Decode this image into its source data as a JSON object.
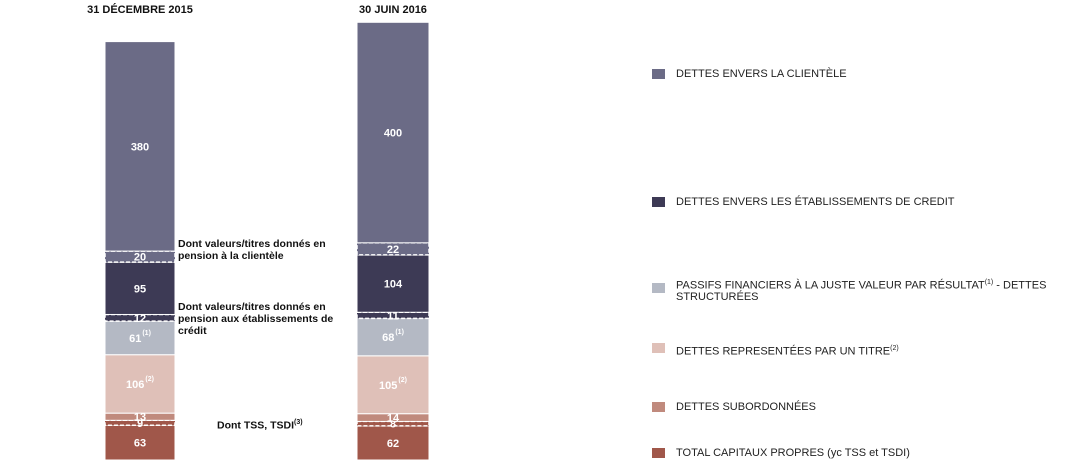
{
  "chart_data": {
    "type": "stacked_bar",
    "categories": [
      "31 DÉCEMBRE  2015",
      "30 JUIN 2016"
    ],
    "ylim": [
      0,
      800
    ],
    "series": [
      {
        "name": "TOTAL CAPITAUX PROPRES (yc TSS et TSDI)",
        "color": "#a0574a",
        "values": [
          63,
          62
        ]
      },
      {
        "color": "#a0574a",
        "dashed": true,
        "values": [
          9,
          8
        ],
        "annotation": "Dont TSS, TSDI(3)"
      },
      {
        "name": "DETTES SUBORDONNÉES",
        "color": "#c08a7d",
        "values": [
          13,
          14
        ]
      },
      {
        "name": "DETTES REPRESENTÉES PAR UN TITRE(2)",
        "color": "#dfc0b8",
        "values": [
          106,
          105
        ],
        "value_notes": [
          "(2)",
          "(2)"
        ]
      },
      {
        "name": "PASSIFS FINANCIERS À LA JUSTE VALEUR PAR RÉSULTAT(1) - DETTES STRUCTURÉES",
        "color": "#b4b9c4",
        "values": [
          61,
          68
        ],
        "value_notes": [
          "(1)",
          "(1)"
        ]
      },
      {
        "color": "#3d3a55",
        "dashed": true,
        "values": [
          12,
          11
        ],
        "annotation": "Dont valeurs/titres donnés en pension aux établissements de crédit"
      },
      {
        "name": "DETTES ENVERS LES ÉTABLISSEMENTS DE CREDIT",
        "color": "#3d3a55",
        "values": [
          95,
          104
        ]
      },
      {
        "color": "#6b6b86",
        "dashed": true,
        "values": [
          20,
          22
        ],
        "annotation": "Dont valeurs/titres donnés en pension à la clientèle"
      },
      {
        "name": "DETTES ENVERS LA CLIENTÈLE",
        "color": "#6b6b86",
        "values": [
          380,
          400
        ]
      }
    ]
  }
}
